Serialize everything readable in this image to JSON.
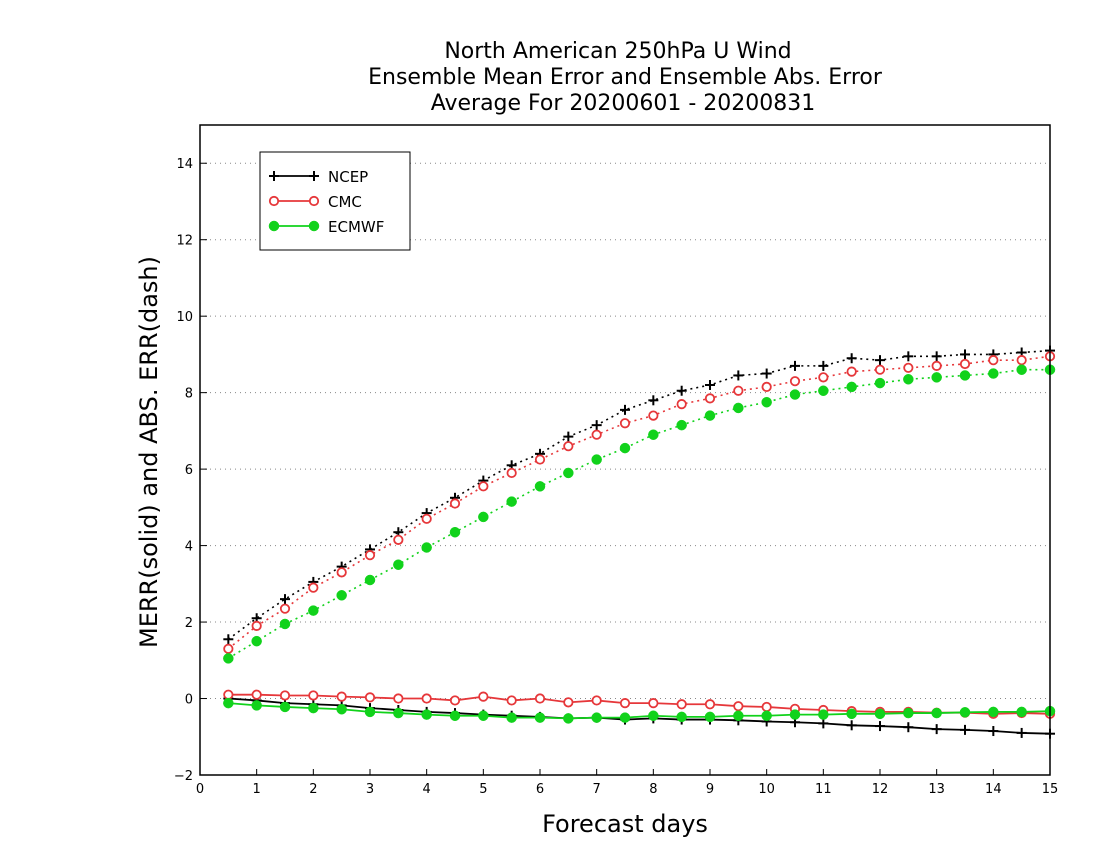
{
  "chart_data": {
    "type": "line",
    "title": [
      "North American 250hPa U Wind",
      "Ensemble Mean Error and Ensemble Abs. Error",
      "Average For 20200601 - 20200831"
    ],
    "xlabel": "Forecast days",
    "ylabel": "MERR(solid) and ABS. ERR(dash)",
    "xlim": [
      0,
      15
    ],
    "ylim": [
      -2,
      15
    ],
    "xticks": [
      "0",
      "1",
      "2",
      "3",
      "4",
      "5",
      "6",
      "7",
      "8",
      "9",
      "10",
      "11",
      "12",
      "13",
      "14",
      "15"
    ],
    "yticks": [
      "−2",
      "0",
      "2",
      "4",
      "6",
      "8",
      "10",
      "12",
      "14"
    ],
    "ytick_values": [
      -2,
      0,
      2,
      4,
      6,
      8,
      10,
      12,
      14
    ],
    "grid": "horizontal dotted",
    "legend_position": "top-left",
    "x": [
      0.5,
      1.0,
      1.5,
      2.0,
      2.5,
      3.0,
      3.5,
      4.0,
      4.5,
      5.0,
      5.5,
      6.0,
      6.5,
      7.0,
      7.5,
      8.0,
      8.5,
      9.0,
      9.5,
      10.0,
      10.5,
      11.0,
      11.5,
      12.0,
      12.5,
      13.0,
      13.5,
      14.0,
      14.5,
      15.0
    ],
    "series": [
      {
        "name": "NCEP",
        "color": "#000000",
        "marker": "plus",
        "abs_error": [
          1.55,
          2.1,
          2.6,
          3.05,
          3.45,
          3.9,
          4.35,
          4.85,
          5.25,
          5.7,
          6.1,
          6.4,
          6.85,
          7.15,
          7.55,
          7.8,
          8.05,
          8.2,
          8.45,
          8.5,
          8.7,
          8.7,
          8.9,
          8.85,
          8.95,
          8.95,
          9.0,
          9.0,
          9.05,
          9.1
        ],
        "mean_error": [
          0.0,
          -0.05,
          -0.12,
          -0.15,
          -0.18,
          -0.25,
          -0.3,
          -0.35,
          -0.38,
          -0.42,
          -0.45,
          -0.48,
          -0.52,
          -0.5,
          -0.55,
          -0.52,
          -0.55,
          -0.55,
          -0.57,
          -0.6,
          -0.62,
          -0.65,
          -0.7,
          -0.72,
          -0.75,
          -0.8,
          -0.82,
          -0.85,
          -0.9,
          -0.92
        ]
      },
      {
        "name": "CMC",
        "color": "#e6373a",
        "marker": "open-circle",
        "abs_error": [
          1.3,
          1.9,
          2.35,
          2.9,
          3.3,
          3.75,
          4.15,
          4.7,
          5.1,
          5.55,
          5.9,
          6.25,
          6.6,
          6.9,
          7.2,
          7.4,
          7.7,
          7.85,
          8.05,
          8.15,
          8.3,
          8.4,
          8.55,
          8.6,
          8.65,
          8.7,
          8.75,
          8.85,
          8.85,
          8.95
        ],
        "mean_error": [
          0.1,
          0.1,
          0.08,
          0.08,
          0.05,
          0.03,
          0.0,
          0.0,
          -0.05,
          0.05,
          -0.05,
          0.0,
          -0.1,
          -0.05,
          -0.12,
          -0.12,
          -0.15,
          -0.15,
          -0.2,
          -0.22,
          -0.27,
          -0.3,
          -0.33,
          -0.35,
          -0.35,
          -0.37,
          -0.37,
          -0.4,
          -0.38,
          -0.4
        ]
      },
      {
        "name": "ECMWF",
        "color": "#11d21b",
        "marker": "filled-circle",
        "abs_error": [
          1.05,
          1.5,
          1.95,
          2.3,
          2.7,
          3.1,
          3.5,
          3.95,
          4.35,
          4.75,
          5.15,
          5.55,
          5.9,
          6.25,
          6.55,
          6.9,
          7.15,
          7.4,
          7.6,
          7.75,
          7.95,
          8.05,
          8.15,
          8.25,
          8.35,
          8.4,
          8.45,
          8.5,
          8.6,
          8.6
        ],
        "mean_error": [
          -0.12,
          -0.18,
          -0.22,
          -0.25,
          -0.28,
          -0.35,
          -0.38,
          -0.42,
          -0.45,
          -0.45,
          -0.5,
          -0.5,
          -0.52,
          -0.5,
          -0.5,
          -0.45,
          -0.48,
          -0.48,
          -0.45,
          -0.45,
          -0.42,
          -0.42,
          -0.4,
          -0.4,
          -0.38,
          -0.38,
          -0.36,
          -0.35,
          -0.35,
          -0.33
        ]
      }
    ]
  }
}
